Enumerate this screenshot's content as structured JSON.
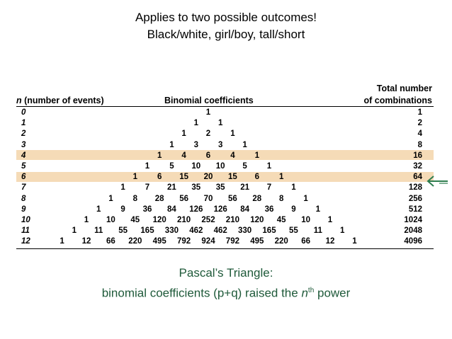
{
  "intro": {
    "line1": "Applies to two possible outcomes!",
    "line2": "Black/white, girl/boy, tall/short"
  },
  "table": {
    "col_n": "n (number of events)",
    "col_coef": "Binomial coefficients",
    "col_total_1": "Total number",
    "col_total_2": "of combinations",
    "highlight_color": "#f5dbb7",
    "highlight_rows": [
      "4",
      "6"
    ],
    "rows": [
      {
        "n": "0",
        "coefs": [
          "1"
        ],
        "total": "1"
      },
      {
        "n": "1",
        "coefs": [
          "1",
          "1"
        ],
        "total": "2"
      },
      {
        "n": "2",
        "coefs": [
          "1",
          "2",
          "1"
        ],
        "total": "4"
      },
      {
        "n": "3",
        "coefs": [
          "1",
          "3",
          "3",
          "1"
        ],
        "total": "8"
      },
      {
        "n": "4",
        "coefs": [
          "1",
          "4",
          "6",
          "4",
          "1"
        ],
        "total": "16"
      },
      {
        "n": "5",
        "coefs": [
          "1",
          "5",
          "10",
          "10",
          "5",
          "1"
        ],
        "total": "32"
      },
      {
        "n": "6",
        "coefs": [
          "1",
          "6",
          "15",
          "20",
          "15",
          "6",
          "1"
        ],
        "total": "64"
      },
      {
        "n": "7",
        "coefs": [
          "1",
          "7",
          "21",
          "35",
          "35",
          "21",
          "7",
          "1"
        ],
        "total": "128"
      },
      {
        "n": "8",
        "coefs": [
          "1",
          "8",
          "28",
          "56",
          "70",
          "56",
          "28",
          "8",
          "1"
        ],
        "total": "256"
      },
      {
        "n": "9",
        "coefs": [
          "1",
          "9",
          "36",
          "84",
          "126",
          "126",
          "84",
          "36",
          "9",
          "1"
        ],
        "total": "512"
      },
      {
        "n": "10",
        "coefs": [
          "1",
          "10",
          "45",
          "120",
          "210",
          "252",
          "210",
          "120",
          "45",
          "10",
          "1"
        ],
        "total": "1024"
      },
      {
        "n": "11",
        "coefs": [
          "1",
          "11",
          "55",
          "165",
          "330",
          "462",
          "462",
          "330",
          "165",
          "55",
          "11",
          "1"
        ],
        "total": "2048"
      },
      {
        "n": "12",
        "coefs": [
          "1",
          "12",
          "66",
          "220",
          "495",
          "792",
          "924",
          "792",
          "495",
          "220",
          "66",
          "12",
          "1"
        ],
        "total": "4096"
      }
    ]
  },
  "caption": {
    "line1": "Pascal’s Triangle:",
    "line2_pre": "binomial coefficients (p+q) raised the ",
    "line2_n": "n",
    "line2_sup": "th",
    "line2_post": " power"
  },
  "arrow": {
    "color": "#2e7d4f",
    "icon": "left-arrow-icon"
  }
}
